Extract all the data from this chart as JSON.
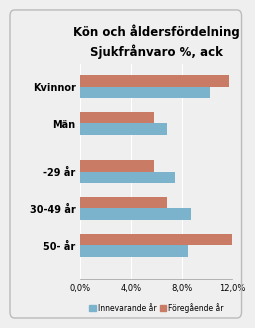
{
  "title": "Kön och åldersfördelning",
  "subtitle": "Sjukfrånvaro %, ack",
  "categories": [
    "Kvinnor",
    "Män",
    "-29 år",
    "30-49 år",
    "50- år"
  ],
  "innevarande": [
    10.2,
    6.8,
    7.5,
    8.7,
    8.5
  ],
  "foregående": [
    11.7,
    5.8,
    5.8,
    6.8,
    12.2
  ],
  "color_innevarande": "#7BB3CC",
  "color_foregående": "#C97B65",
  "xlim": [
    0,
    12.0
  ],
  "xticks": [
    0,
    4.0,
    8.0,
    12.0
  ],
  "xtick_labels": [
    "0,0%",
    "4,0%",
    "8,0%",
    "12,0%"
  ],
  "legend_innevarande": "Innevarande år",
  "legend_foregående": "Föregående år",
  "background_color": "#EFEFEF",
  "bar_height": 0.32,
  "title_fontsize": 8.5,
  "subtitle_fontsize": 7.5,
  "label_fontsize": 7,
  "tick_fontsize": 6,
  "legend_fontsize": 5.5,
  "group_positions": [
    0,
    1,
    2.3,
    3.3,
    4.3
  ]
}
